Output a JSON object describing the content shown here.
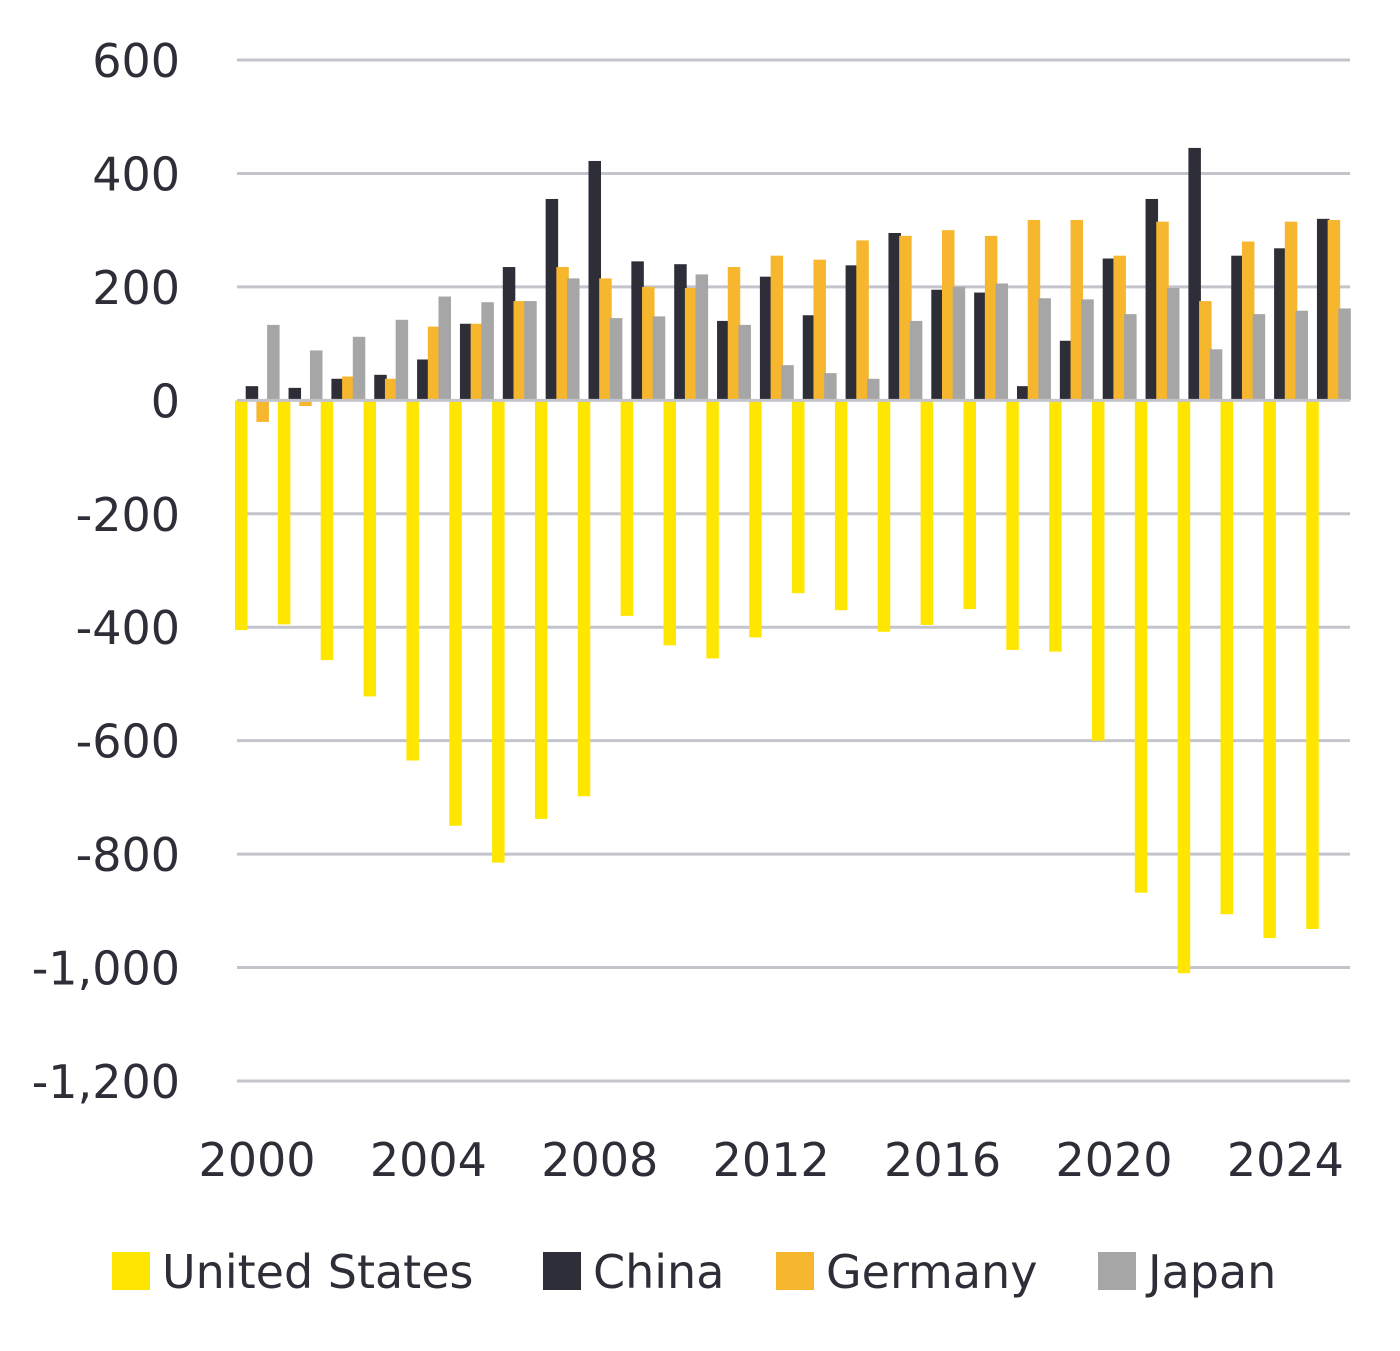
{
  "chart_data": {
    "type": "bar",
    "title": "",
    "xlabel": "",
    "ylabel": "",
    "ylim": [
      -1200,
      600
    ],
    "yticks": [
      600,
      400,
      200,
      0,
      -200,
      -400,
      -600,
      -800,
      -1000,
      -1200
    ],
    "ytick_labels": [
      "600",
      "400",
      "200",
      "0",
      "-200",
      "-400",
      "-600",
      "-800",
      "-1,000",
      "-1,200"
    ],
    "xtick_labels": [
      "2000",
      "2004",
      "2008",
      "2012",
      "2016",
      "2020",
      "2024"
    ],
    "xtick_years": [
      2000,
      2004,
      2008,
      2012,
      2016,
      2020,
      2024
    ],
    "grid": true,
    "legend_position": "bottom",
    "categories": [
      2000,
      2001,
      2002,
      2003,
      2004,
      2005,
      2006,
      2007,
      2008,
      2009,
      2010,
      2011,
      2012,
      2013,
      2014,
      2015,
      2016,
      2017,
      2018,
      2019,
      2020,
      2021,
      2022,
      2023,
      2024,
      2025
    ],
    "series": [
      {
        "name": "United States",
        "color": "#ffe600",
        "values": [
          -405,
          -395,
          -458,
          -522,
          -635,
          -750,
          -815,
          -738,
          -698,
          -380,
          -432,
          -455,
          -418,
          -340,
          -370,
          -408,
          -396,
          -368,
          -440,
          -443,
          -600,
          -868,
          -1010,
          -906,
          -948,
          -932
        ]
      },
      {
        "name": "China",
        "color": "#2e2e38",
        "values": [
          25,
          22,
          38,
          45,
          72,
          135,
          235,
          355,
          422,
          245,
          240,
          140,
          218,
          150,
          238,
          295,
          195,
          190,
          25,
          105,
          250,
          355,
          445,
          255,
          268,
          320
        ]
      },
      {
        "name": "Germany",
        "color": "#f6b62e",
        "values": [
          -38,
          -10,
          42,
          38,
          130,
          135,
          175,
          235,
          215,
          200,
          198,
          235,
          255,
          248,
          282,
          290,
          300,
          290,
          318,
          318,
          255,
          315,
          175,
          280,
          315,
          318
        ]
      },
      {
        "name": "Japan",
        "color": "#a6a6a6",
        "values": [
          133,
          88,
          112,
          142,
          183,
          173,
          175,
          215,
          145,
          148,
          222,
          133,
          62,
          48,
          38,
          140,
          200,
          206,
          180,
          178,
          152,
          198,
          90,
          152,
          158,
          162
        ]
      }
    ]
  }
}
